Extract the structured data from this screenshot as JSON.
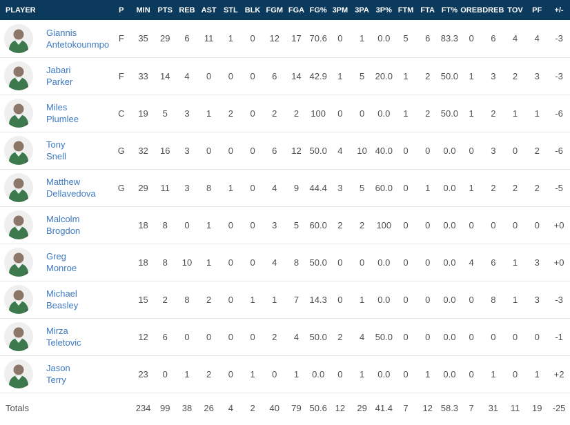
{
  "table": {
    "columns": [
      "PLAYER",
      "P",
      "MIN",
      "PTS",
      "REB",
      "AST",
      "STL",
      "BLK",
      "FGM",
      "FGA",
      "FG%",
      "3PM",
      "3PA",
      "3P%",
      "FTM",
      "FTA",
      "FT%",
      "OREB",
      "DREB",
      "TOV",
      "PF",
      "+/-"
    ],
    "players": [
      {
        "first": "Giannis",
        "last": "Antetokounmpo",
        "pos": "F",
        "stats": [
          "35",
          "29",
          "6",
          "11",
          "1",
          "0",
          "12",
          "17",
          "70.6",
          "0",
          "1",
          "0.0",
          "5",
          "6",
          "83.3",
          "0",
          "6",
          "4",
          "4",
          "-3"
        ]
      },
      {
        "first": "Jabari",
        "last": "Parker",
        "pos": "F",
        "stats": [
          "33",
          "14",
          "4",
          "0",
          "0",
          "0",
          "6",
          "14",
          "42.9",
          "1",
          "5",
          "20.0",
          "1",
          "2",
          "50.0",
          "1",
          "3",
          "2",
          "3",
          "-3"
        ]
      },
      {
        "first": "Miles",
        "last": "Plumlee",
        "pos": "C",
        "stats": [
          "19",
          "5",
          "3",
          "1",
          "2",
          "0",
          "2",
          "2",
          "100",
          "0",
          "0",
          "0.0",
          "1",
          "2",
          "50.0",
          "1",
          "2",
          "1",
          "1",
          "-6"
        ]
      },
      {
        "first": "Tony",
        "last": "Snell",
        "pos": "G",
        "stats": [
          "32",
          "16",
          "3",
          "0",
          "0",
          "0",
          "6",
          "12",
          "50.0",
          "4",
          "10",
          "40.0",
          "0",
          "0",
          "0.0",
          "0",
          "3",
          "0",
          "2",
          "-6"
        ]
      },
      {
        "first": "Matthew",
        "last": "Dellavedova",
        "pos": "G",
        "stats": [
          "29",
          "11",
          "3",
          "8",
          "1",
          "0",
          "4",
          "9",
          "44.4",
          "3",
          "5",
          "60.0",
          "0",
          "1",
          "0.0",
          "1",
          "2",
          "2",
          "2",
          "-5"
        ]
      },
      {
        "first": "Malcolm",
        "last": "Brogdon",
        "pos": "",
        "stats": [
          "18",
          "8",
          "0",
          "1",
          "0",
          "0",
          "3",
          "5",
          "60.0",
          "2",
          "2",
          "100",
          "0",
          "0",
          "0.0",
          "0",
          "0",
          "0",
          "0",
          "+0"
        ]
      },
      {
        "first": "Greg",
        "last": "Monroe",
        "pos": "",
        "stats": [
          "18",
          "8",
          "10",
          "1",
          "0",
          "0",
          "4",
          "8",
          "50.0",
          "0",
          "0",
          "0.0",
          "0",
          "0",
          "0.0",
          "4",
          "6",
          "1",
          "3",
          "+0"
        ]
      },
      {
        "first": "Michael",
        "last": "Beasley",
        "pos": "",
        "stats": [
          "15",
          "2",
          "8",
          "2",
          "0",
          "1",
          "1",
          "7",
          "14.3",
          "0",
          "1",
          "0.0",
          "0",
          "0",
          "0.0",
          "0",
          "8",
          "1",
          "3",
          "-3"
        ]
      },
      {
        "first": "Mirza",
        "last": "Teletovic",
        "pos": "",
        "stats": [
          "12",
          "6",
          "0",
          "0",
          "0",
          "0",
          "2",
          "4",
          "50.0",
          "2",
          "4",
          "50.0",
          "0",
          "0",
          "0.0",
          "0",
          "0",
          "0",
          "0",
          "-1"
        ]
      },
      {
        "first": "Jason",
        "last": "Terry",
        "pos": "",
        "stats": [
          "23",
          "0",
          "1",
          "2",
          "0",
          "1",
          "0",
          "1",
          "0.0",
          "0",
          "1",
          "0.0",
          "0",
          "1",
          "0.0",
          "0",
          "1",
          "0",
          "1",
          "+2"
        ]
      }
    ],
    "totals": {
      "label": "Totals",
      "pos": "",
      "stats": [
        "234",
        "99",
        "38",
        "26",
        "4",
        "2",
        "40",
        "79",
        "50.6",
        "12",
        "29",
        "41.4",
        "7",
        "12",
        "58.3",
        "7",
        "31",
        "11",
        "19",
        "-25"
      ]
    }
  },
  "icons": {
    "avatar": "player-headshot-icon"
  },
  "colors": {
    "header_bg": "#0c3a5c",
    "header_text": "#ffffff",
    "link_blue": "#3d79c2",
    "stat_text": "#4f4f4f",
    "row_border": "#e8e8e8",
    "avatar_bg": "#efefef",
    "jersey_green": "#3c7a4e"
  }
}
